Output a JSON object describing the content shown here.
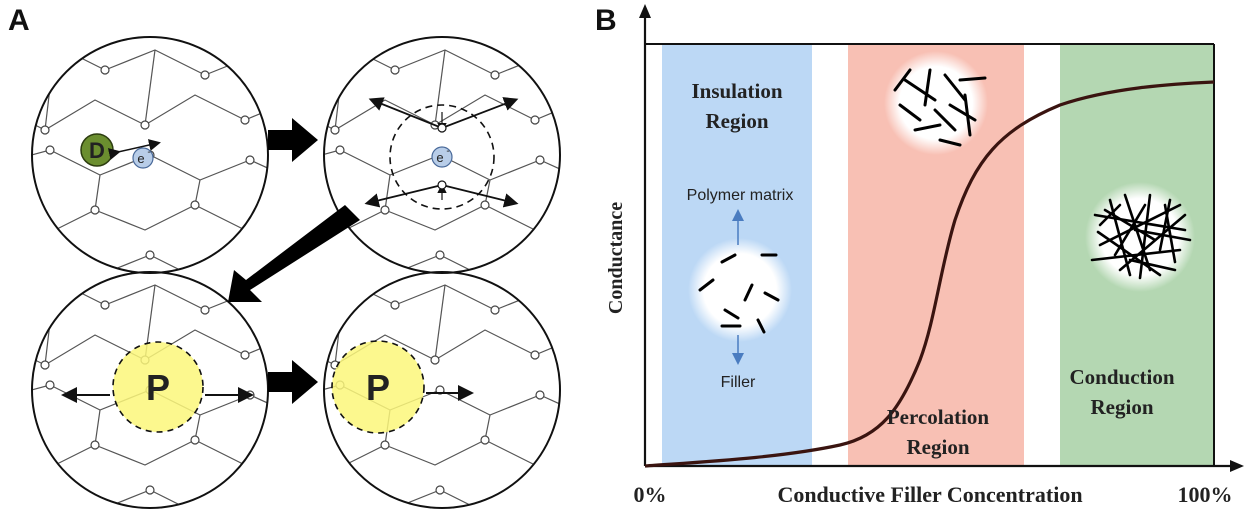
{
  "panel_a": {
    "label": "A",
    "donor_symbol": "D",
    "electron_symbol": "e",
    "electron_charge": "-",
    "polaron_symbol": "P"
  },
  "panel_b": {
    "label": "B",
    "y_axis_label": "Conductance",
    "x_axis_label": "Conductive Filler Concentration",
    "x_start_label": "0%",
    "x_end_label": "100%",
    "regions": {
      "insulation": {
        "line1": "Insulation",
        "line2": "Region",
        "color": "#bcd8f5"
      },
      "percolation": {
        "line1": "Percolation",
        "line2": "Region",
        "color": "#f8c0b4"
      },
      "conduction": {
        "line1": "Conduction",
        "line2": "Region",
        "color": "#b4d7b2"
      }
    },
    "inset_labels": {
      "matrix": "Polymer matrix",
      "filler": "Filler"
    }
  },
  "colors": {
    "donor": "#6b8e2f",
    "electron": "#b8cde8",
    "polaron": "#fbf77a",
    "curve": "#3a1410",
    "arrow_blue": "#4a7cc0"
  }
}
